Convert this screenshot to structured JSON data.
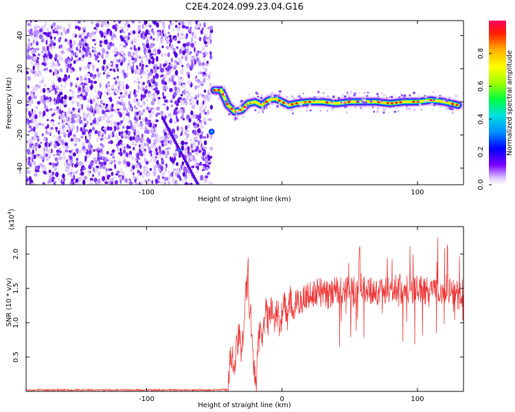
{
  "figure": {
    "title": "C2E4.2024.099.23.04.G16"
  },
  "chart_data": [
    {
      "type": "heatmap",
      "xlabel": "Height of straight line (km)",
      "ylabel": "Frequency (Hz)",
      "xlim": [
        -189,
        134
      ],
      "ylim": [
        -50,
        49
      ],
      "xticks": [
        -100,
        0,
        100
      ],
      "xtick_labels": [
        "-100",
        "",
        "100"
      ],
      "yticks": [
        -40,
        -20,
        0,
        20,
        40
      ],
      "ytick_labels": [
        "-40",
        "-20",
        "0",
        "20",
        "40"
      ],
      "noise_region_x": [
        -189,
        -52
      ],
      "ridge": {
        "x": [
          -50,
          -45,
          -40,
          -35,
          -30,
          -25,
          -20,
          -15,
          -10,
          -5,
          0,
          5,
          10,
          20,
          30,
          40,
          50,
          60,
          70,
          80,
          90,
          100,
          110,
          120,
          130
        ],
        "y": [
          7,
          7,
          -2,
          -6,
          -5,
          -1,
          0,
          -2,
          1,
          2,
          0,
          -2,
          -1,
          0,
          0,
          -1,
          0,
          0,
          0,
          -1,
          0,
          0,
          1,
          0,
          -2
        ]
      },
      "colorbar": {
        "label": "Normalized spectral amplitude",
        "range": [
          0,
          1
        ],
        "ticks": [
          0.0,
          0.2,
          0.4,
          0.6,
          0.8
        ],
        "tick_labels": [
          "0.0",
          "0.2",
          "0.4",
          "0.6",
          "0.8"
        ]
      },
      "grid": false
    },
    {
      "type": "line",
      "xlabel": "Height of straight line (km)",
      "ylabel": "SNR (10 * v/v)",
      "scale_note": "(x10",
      "scale_exp": "4",
      "xlim": [
        -189,
        134
      ],
      "ylim": [
        0,
        2.4
      ],
      "xticks": [
        -100,
        0,
        100
      ],
      "xtick_labels": [
        "-100",
        "0",
        "100"
      ],
      "yticks": [
        0.5,
        1.0,
        1.5,
        2.0
      ],
      "ytick_labels": [
        "0.5",
        "1.0",
        "1.5",
        "2.0"
      ],
      "series": [
        {
          "color": "#ee3333",
          "x": [
            -189,
            -150,
            -100,
            -50,
            -40,
            -39,
            -38,
            -36,
            -34,
            -32,
            -30,
            -28,
            -26,
            -25,
            -24,
            -22,
            -20,
            -19,
            -18,
            -16,
            -14,
            -12,
            -10,
            -8,
            -6,
            -4,
            -2,
            0,
            2,
            4,
            6,
            8,
            10,
            15,
            20,
            25,
            30,
            40,
            50,
            60,
            70,
            80,
            90,
            100,
            110,
            120,
            130,
            134
          ],
          "y": [
            0.02,
            0.02,
            0.02,
            0.02,
            0.03,
            0.25,
            0.5,
            0.4,
            0.55,
            0.75,
            0.65,
            1.1,
            1.5,
            1.7,
            1.2,
            0.8,
            0.2,
            0.05,
            0.55,
            1.0,
            0.8,
            1.2,
            1.0,
            1.3,
            0.9,
            1.2,
            1.0,
            1.1,
            1.3,
            1.05,
            1.35,
            1.15,
            1.25,
            1.35,
            1.4,
            1.45,
            1.4,
            1.45,
            1.45,
            1.5,
            1.45,
            1.5,
            1.45,
            1.5,
            1.45,
            1.45,
            1.4,
            1.45
          ]
        }
      ],
      "grid": false
    }
  ]
}
